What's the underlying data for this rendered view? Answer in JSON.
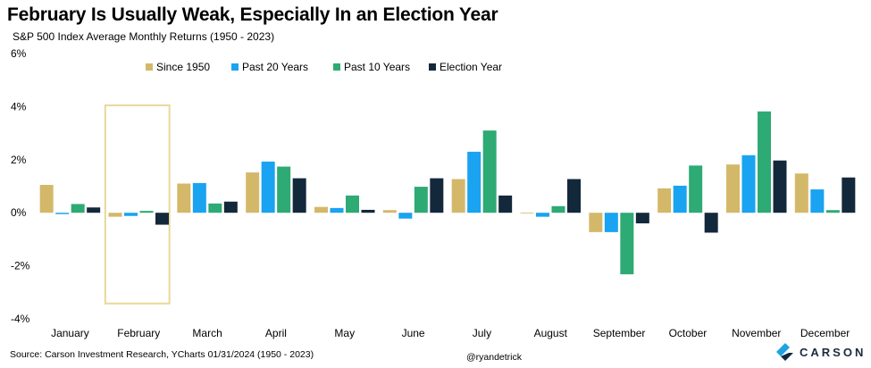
{
  "header": {
    "title": "February Is Usually Weak, Especially In an Election Year",
    "subtitle": "S&P 500 Index Average Monthly Returns (1950 - 2023)"
  },
  "footer": {
    "source": "Source: Carson Investment Research, YCharts 01/31/2024 (1950 - 2023)",
    "handle": "@ryandetrick",
    "logo_text": "CARSON"
  },
  "colors": {
    "since_1950": "#D4B86A",
    "past_20": "#1AA3F0",
    "past_10": "#2EAA74",
    "election": "#14283C",
    "highlight_box": "#E8D898",
    "logo_icon": "#1FA3E0"
  },
  "chart_data": {
    "type": "bar",
    "title": "February Is Usually Weak, Especially In an Election Year",
    "subtitle": "S&P 500 Index Average Monthly Returns (1950 - 2023)",
    "categories": [
      "January",
      "February",
      "March",
      "April",
      "May",
      "June",
      "July",
      "August",
      "September",
      "October",
      "November",
      "December"
    ],
    "series": [
      {
        "name": "Since 1950",
        "values": [
          1.05,
          -0.15,
          1.1,
          1.52,
          0.22,
          0.1,
          1.27,
          -0.02,
          -0.73,
          0.92,
          1.82,
          1.48
        ]
      },
      {
        "name": "Past 20 Years",
        "values": [
          -0.05,
          -0.12,
          1.12,
          1.93,
          0.18,
          -0.22,
          2.3,
          -0.15,
          -0.73,
          1.02,
          2.17,
          0.88
        ]
      },
      {
        "name": "Past 10 Years",
        "values": [
          0.33,
          0.07,
          0.35,
          1.74,
          0.65,
          0.98,
          3.1,
          0.25,
          -2.32,
          1.78,
          3.82,
          0.1
        ]
      },
      {
        "name": "Election Year",
        "values": [
          0.2,
          -0.45,
          0.42,
          1.3,
          0.11,
          1.3,
          0.65,
          1.27,
          -0.4,
          -0.75,
          1.97,
          1.33
        ]
      }
    ],
    "yticks": [
      "6%",
      "4%",
      "2%",
      "0%",
      "-2%",
      "-4%"
    ],
    "ytick_values": [
      6,
      4,
      2,
      0,
      -2,
      -4
    ],
    "ylim": [
      -4,
      6
    ],
    "grid": false,
    "legend_position": "top",
    "highlighted_category": "February"
  }
}
